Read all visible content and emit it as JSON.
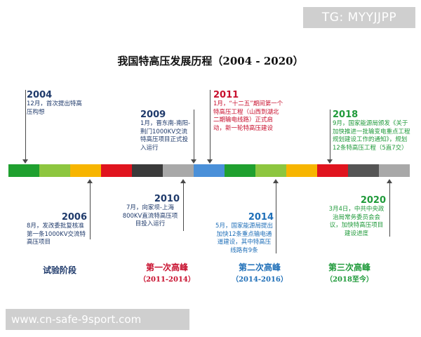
{
  "watermark": "TG: MYYJJPP",
  "title": "我国特高压发展历程（2004 - 2020）",
  "timeline_colors": [
    "#1fa02f",
    "#8dc63f",
    "#f7b500",
    "#e0141e",
    "#3a3a3a",
    "#a8a8a8",
    "#4a90d9",
    "#1fa02f",
    "#8dc63f",
    "#f7b500",
    "#e0141e",
    "#555555",
    "#a8a8a8"
  ],
  "events": {
    "e2004": {
      "year": "2004",
      "desc": "12月，首次提出特高压构想",
      "color": "#1f3a6b"
    },
    "e2006": {
      "year": "2006",
      "desc": "8月，发改委批复核准第一条1000KV交流特高压项目",
      "color": "#1f3a6b"
    },
    "e2009": {
      "year": "2009",
      "desc": "1月，晋东南-南阳-荆门1000KV交流特高压项目正式投入运行",
      "color": "#1f3a6b"
    },
    "e2010": {
      "year": "2010",
      "desc": "7月，向家坝-上海800KV直流特高压项目投入运行",
      "color": "#1f3a6b"
    },
    "e2011": {
      "year": "2011",
      "desc": "1月，“十二五”期间第一个特高压工程（山西到湖北二期输电线路）正式启动，新一轮特高压建设",
      "color": "#c8102e"
    },
    "e2014": {
      "year": "2014",
      "desc": "5月，国家能源局提出加快12条重点输电通道建设，其中特高压线路有9条",
      "color": "#1f6fb8"
    },
    "e2018": {
      "year": "2018",
      "desc": "9月，国家能源局颁发《关于加快推进一批输变电重点工程规划建设工作的通知》，规划12条特高压工程（5直7交）",
      "color": "#1f9a3a"
    },
    "e2020": {
      "year": "2020",
      "desc": "3月4日，中共中央政治局常务委员会会议，加快特高压项目建设进度",
      "color": "#1f9a3a"
    }
  },
  "phases": [
    {
      "name": "试验阶段",
      "sub": "",
      "color": "#1f3a6b"
    },
    {
      "name": "第一次高峰",
      "sub": "（2011-2014）",
      "color": "#c8102e"
    },
    {
      "name": "第二次高峰",
      "sub": "（2014-2016）",
      "color": "#1f6fb8"
    },
    {
      "name": "第三次高峰",
      "sub": "（2018至今）",
      "color": "#1f9a3a"
    }
  ],
  "footer": "www.cn-safe-9sport.com"
}
